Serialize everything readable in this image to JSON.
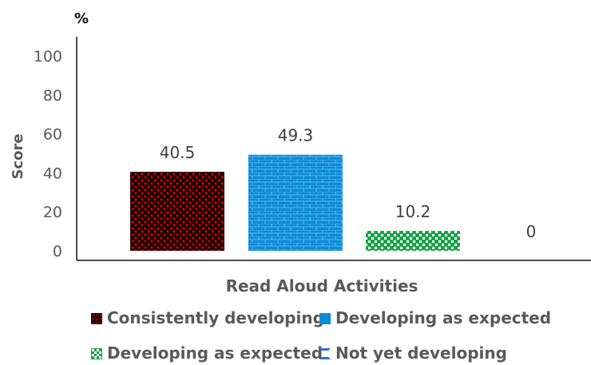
{
  "chart_data": {
    "type": "bar",
    "title": "",
    "unit_label": "%",
    "xlabel": "Read Aloud Activities",
    "ylabel": "Score",
    "ylim": [
      0,
      100
    ],
    "yticks": [
      0,
      20,
      40,
      60,
      80,
      100
    ],
    "grid": false,
    "legend_position": "bottom",
    "series": [
      {
        "name": "Consistently developing",
        "values": [
          40.5
        ],
        "color": "#c00000",
        "pattern": "red dots on black"
      },
      {
        "name": "Developing as expected",
        "values": [
          49.3
        ],
        "color": "#0b8bd6",
        "pattern": "brick"
      },
      {
        "name": "Developing as expected",
        "values": [
          10.2
        ],
        "color": "#1aa34a",
        "pattern": "green checker"
      },
      {
        "name": "Not yet developing",
        "values": [
          0
        ],
        "color": "#2f6fd6",
        "pattern": "hourglass"
      }
    ],
    "data_labels": [
      "40.5",
      "49.3",
      "10.2",
      "0"
    ]
  }
}
